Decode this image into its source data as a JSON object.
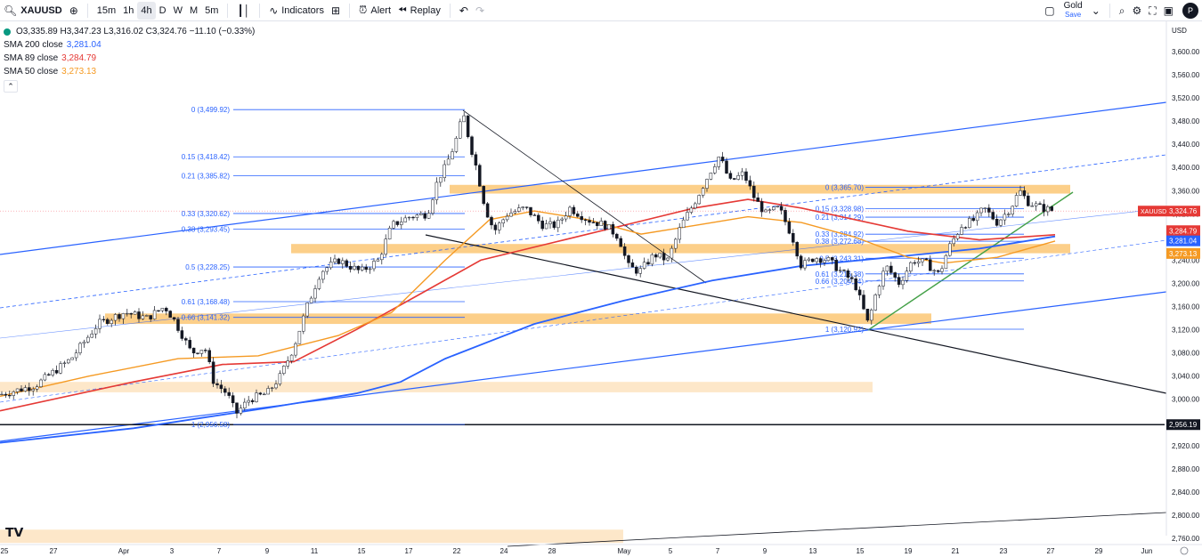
{
  "toolbar": {
    "symbol": "XAUUSD",
    "timeframes": [
      "15m",
      "1h",
      "4h",
      "D",
      "W",
      "M",
      "5m"
    ],
    "active_timeframe": "4h",
    "indicators_label": "Indicators",
    "alert_label": "Alert",
    "replay_label": "Replay",
    "layout_name": "Gold",
    "save_label": "Save",
    "profile_initial": "P"
  },
  "legend": {
    "ohlc": "O3,335.89 H3,347.23 L3,316.02 C3,324.76 −11.10 (−0.33%)",
    "indicators": [
      {
        "label": "SMA 200 close",
        "value": "3,281.04",
        "color": "#2962ff"
      },
      {
        "label": "SMA 89 close",
        "value": "3,284.79",
        "color": "#e53935"
      },
      {
        "label": "SMA 50 close",
        "value": "3,273.13",
        "color": "#f59a23"
      }
    ]
  },
  "chart_data": {
    "type": "candlestick",
    "symbol": "XAUUSD",
    "currency": "USD",
    "x_tick_labels": [
      "25",
      "27",
      "Apr",
      "3",
      "7",
      "9",
      "11",
      "15",
      "17",
      "22",
      "24",
      "28",
      "May",
      "5",
      "7",
      "9",
      "13",
      "15",
      "19",
      "21",
      "23",
      "27",
      "29",
      "Jun"
    ],
    "y_tick_labels": [
      "3,600.00",
      "3,560.00",
      "3,520.00",
      "3,480.00",
      "3,440.00",
      "3,400.00",
      "3,360.00",
      "3,320.00",
      "3,280.00",
      "3,240.00",
      "3,200.00",
      "3,160.00",
      "3,120.00",
      "3,080.00",
      "3,040.00",
      "3,000.00",
      "2,920.00",
      "2,880.00",
      "2,840.00",
      "2,800.00",
      "2,760.00"
    ],
    "ylim": [
      2750,
      3630
    ],
    "close_path": [
      [
        0,
        3008
      ],
      [
        40,
        3024
      ],
      [
        80,
        3070
      ],
      [
        110,
        3130
      ],
      [
        140,
        3150
      ],
      [
        165,
        3140
      ],
      [
        185,
        3160
      ],
      [
        195,
        3138
      ],
      [
        205,
        3110
      ],
      [
        215,
        3080
      ],
      [
        230,
        3090
      ],
      [
        240,
        3030
      ],
      [
        255,
        3010
      ],
      [
        265,
        2975
      ],
      [
        280,
        3000
      ],
      [
        300,
        3010
      ],
      [
        315,
        3040
      ],
      [
        330,
        3090
      ],
      [
        345,
        3160
      ],
      [
        360,
        3220
      ],
      [
        380,
        3240
      ],
      [
        405,
        3220
      ],
      [
        425,
        3240
      ],
      [
        440,
        3300
      ],
      [
        460,
        3315
      ],
      [
        480,
        3320
      ],
      [
        492,
        3380
      ],
      [
        500,
        3400
      ],
      [
        508,
        3430
      ],
      [
        515,
        3460
      ],
      [
        520,
        3495
      ],
      [
        528,
        3440
      ],
      [
        535,
        3400
      ],
      [
        545,
        3330
      ],
      [
        555,
        3290
      ],
      [
        570,
        3320
      ],
      [
        590,
        3330
      ],
      [
        610,
        3300
      ],
      [
        625,
        3300
      ],
      [
        640,
        3330
      ],
      [
        660,
        3310
      ],
      [
        680,
        3300
      ],
      [
        695,
        3280
      ],
      [
        705,
        3230
      ],
      [
        718,
        3220
      ],
      [
        735,
        3250
      ],
      [
        750,
        3240
      ],
      [
        765,
        3300
      ],
      [
        780,
        3340
      ],
      [
        790,
        3370
      ],
      [
        800,
        3400
      ],
      [
        808,
        3420
      ],
      [
        820,
        3375
      ],
      [
        835,
        3390
      ],
      [
        848,
        3345
      ],
      [
        860,
        3320
      ],
      [
        875,
        3330
      ],
      [
        890,
        3280
      ],
      [
        900,
        3230
      ],
      [
        915,
        3245
      ],
      [
        930,
        3240
      ],
      [
        945,
        3220
      ],
      [
        960,
        3200
      ],
      [
        975,
        3130
      ],
      [
        985,
        3190
      ],
      [
        995,
        3230
      ],
      [
        1010,
        3200
      ],
      [
        1025,
        3240
      ],
      [
        1040,
        3235
      ],
      [
        1055,
        3215
      ],
      [
        1065,
        3260
      ],
      [
        1080,
        3300
      ],
      [
        1095,
        3310
      ],
      [
        1105,
        3330
      ],
      [
        1120,
        3305
      ],
      [
        1135,
        3330
      ],
      [
        1145,
        3360
      ],
      [
        1155,
        3340
      ],
      [
        1170,
        3330
      ],
      [
        1185,
        3325
      ]
    ],
    "sma_200": [
      [
        0,
        2925
      ],
      [
        150,
        2950
      ],
      [
        300,
        2985
      ],
      [
        400,
        3010
      ],
      [
        450,
        3030
      ],
      [
        500,
        3070
      ],
      [
        600,
        3130
      ],
      [
        700,
        3170
      ],
      [
        800,
        3205
      ],
      [
        900,
        3230
      ],
      [
        1000,
        3245
      ],
      [
        1100,
        3260
      ],
      [
        1185,
        3281
      ]
    ],
    "sma_89": [
      [
        0,
        2980
      ],
      [
        150,
        3030
      ],
      [
        250,
        3060
      ],
      [
        330,
        3065
      ],
      [
        400,
        3120
      ],
      [
        470,
        3180
      ],
      [
        540,
        3240
      ],
      [
        620,
        3270
      ],
      [
        700,
        3300
      ],
      [
        780,
        3330
      ],
      [
        840,
        3345
      ],
      [
        900,
        3330
      ],
      [
        960,
        3310
      ],
      [
        1020,
        3290
      ],
      [
        1100,
        3275
      ],
      [
        1185,
        3284
      ]
    ],
    "sma_50": [
      [
        0,
        3005
      ],
      [
        100,
        3040
      ],
      [
        200,
        3070
      ],
      [
        290,
        3075
      ],
      [
        380,
        3110
      ],
      [
        440,
        3150
      ],
      [
        500,
        3240
      ],
      [
        550,
        3310
      ],
      [
        600,
        3325
      ],
      [
        660,
        3310
      ],
      [
        720,
        3285
      ],
      [
        780,
        3300
      ],
      [
        840,
        3315
      ],
      [
        900,
        3305
      ],
      [
        960,
        3280
      ],
      [
        1020,
        3245
      ],
      [
        1060,
        3235
      ],
      [
        1120,
        3245
      ],
      [
        1185,
        3273
      ]
    ],
    "fib_levels_left": [
      {
        "label": "0 (3,499.92)",
        "price": 3499.92
      },
      {
        "label": "0.15 (3,418.42)",
        "price": 3418.42
      },
      {
        "label": "0.21 (3,385.82)",
        "price": 3385.82
      },
      {
        "label": "0.33 (3,320.62)",
        "price": 3320.62
      },
      {
        "label": "0.38 (3,293.45)",
        "price": 3293.45
      },
      {
        "label": "0.5 (3,228.25)",
        "price": 3228.25
      },
      {
        "label": "0.61 (3,168.48)",
        "price": 3168.48
      },
      {
        "label": "0.66 (3,141.32)",
        "price": 3141.32
      },
      {
        "label": "1 (2,956.58)",
        "price": 2956.58
      }
    ],
    "fib_levels_right": [
      {
        "label": "0 (3,365.70)",
        "price": 3365.7
      },
      {
        "label": "0.15 (3,328.98)",
        "price": 3328.98
      },
      {
        "label": "0.21 (3,314.29)",
        "price": 3314.29
      },
      {
        "label": "0.33 (3,284.92)",
        "price": 3284.92
      },
      {
        "label": "0.38 (3,272.68)",
        "price": 3272.68
      },
      {
        "label": "0.5 (3,243.31)",
        "price": 3243.31
      },
      {
        "label": "0.61 (3,216.38)",
        "price": 3216.38
      },
      {
        "label": "0.66 (3,204.14)",
        "price": 3204.14
      },
      {
        "label": "1 (3,120.92)",
        "price": 3120.92
      }
    ],
    "zones": [
      {
        "from": 3355,
        "to": 3370,
        "color": "#fbc774"
      },
      {
        "from": 3252,
        "to": 3268,
        "color": "#fbc774"
      },
      {
        "from": 3130,
        "to": 3148,
        "color": "#fbc774"
      },
      {
        "from": 3012,
        "to": 3030,
        "color": "#fde3c0"
      },
      {
        "from": 2752,
        "to": 2775,
        "color": "#fde3c0"
      }
    ],
    "horizontal_line": {
      "price": 2956.19,
      "label": "2,956.19"
    },
    "price_badges": [
      {
        "value": "3,324.76",
        "color": "#e53935",
        "price": 3324.76
      },
      {
        "value": "3,284.79",
        "color": "#e53935",
        "price": 3284.79
      },
      {
        "value": "3,281.04",
        "color": "#2962ff",
        "price": 3281.04
      },
      {
        "value": "3,273.13",
        "color": "#f59a23",
        "price": 3273.13
      }
    ],
    "symbol_badge": "XAUUSD"
  },
  "colors": {
    "up": "#089981",
    "down": "#f23645",
    "channel": "#2962ff",
    "trend_green": "#43a047",
    "trend_black": "#131722"
  }
}
